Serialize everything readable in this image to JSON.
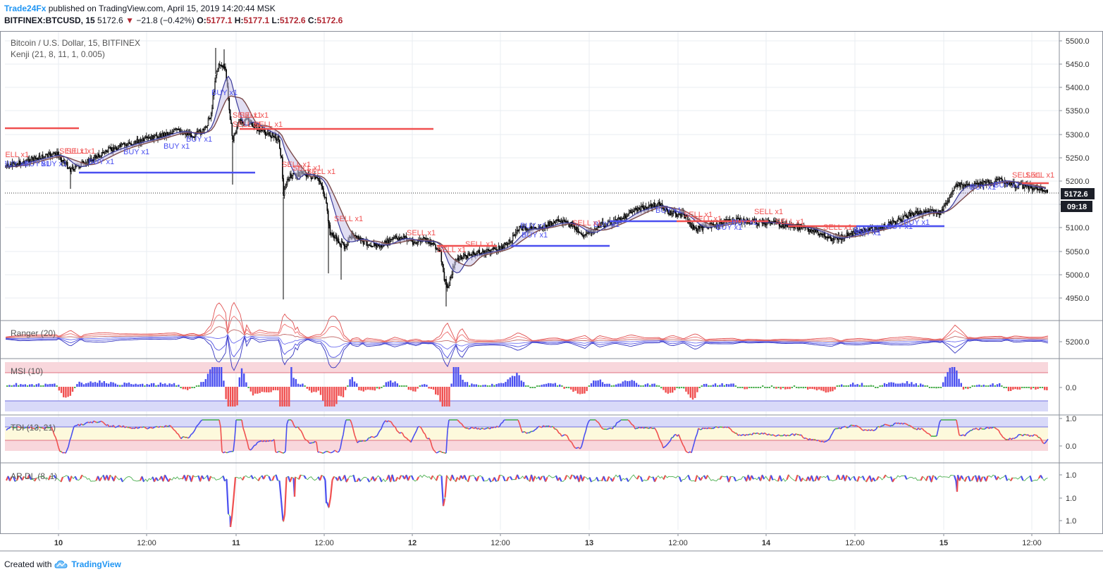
{
  "publish": {
    "author": "Trade24Fx",
    "text": "published on TradingView.com, April 15, 2019 14:20:44 MSK"
  },
  "ohlc": {
    "symbol": "BITFINEX:BTCUSD, 15",
    "last": "5172.6",
    "change": "−21.8 (−0.42%)",
    "o_label": "O:",
    "o": "5177.1",
    "h_label": "H:",
    "h": "5177.1",
    "l_label": "L:",
    "l": "5172.6",
    "c_label": "C:",
    "c": "5172.6"
  },
  "chart_title": "Bitcoin / U.S. Dollar, 15, BITFINEX",
  "indicator": "Kenji (21, 8, 11, 1, 0.005)",
  "colors": {
    "buy": "#4a4ff0",
    "sell": "#f05050",
    "up": "#4caf50",
    "candle": "#000000",
    "grid": "#e8ecf2"
  },
  "price_axis": {
    "ticks": [
      "5500.0",
      "5450.0",
      "5400.0",
      "5350.0",
      "5300.0",
      "5250.0",
      "5200.0",
      "5150.0",
      "5100.0",
      "5050.0",
      "5000.0",
      "4950.0"
    ],
    "current_price": "5172.6",
    "countdown": "09:18"
  },
  "time_axis": {
    "ticks": [
      "10",
      "12:00",
      "11",
      "12:00",
      "12",
      "12:00",
      "13",
      "12:00",
      "14",
      "12:00",
      "15",
      "12:00"
    ]
  },
  "trade_labels": {
    "buy": "BUY x1",
    "sell": "SELL x1",
    "buy_positions": [
      [
        3,
        236
      ],
      [
        34,
        236
      ],
      [
        58,
        236
      ],
      [
        125,
        233
      ],
      [
        175,
        219
      ],
      [
        232,
        211
      ],
      [
        264,
        201
      ],
      [
        300,
        135
      ],
      [
        738,
        324
      ],
      [
        740,
        337
      ],
      [
        842,
        322
      ],
      [
        930,
        302
      ],
      [
        1016,
        326
      ],
      [
        1038,
        319
      ],
      [
        1211,
        330
      ],
      [
        1213,
        334
      ],
      [
        1258,
        325
      ],
      [
        1282,
        319
      ],
      [
        1376,
        269
      ],
      [
        1410,
        266
      ]
    ],
    "sell_positions": [
      [
        0,
        223
      ],
      [
        84,
        218
      ],
      [
        94,
        218
      ],
      [
        330,
        167
      ],
      [
        340,
        167
      ],
      [
        330,
        180
      ],
      [
        360,
        180
      ],
      [
        400,
        237
      ],
      [
        415,
        242
      ],
      [
        435,
        247
      ],
      [
        474,
        314
      ],
      [
        577,
        334
      ],
      [
        620,
        358
      ],
      [
        660,
        350
      ],
      [
        812,
        320
      ],
      [
        970,
        308
      ],
      [
        983,
        314
      ],
      [
        1070,
        304
      ],
      [
        1100,
        318
      ],
      [
        1168,
        326
      ],
      [
        1436,
        252
      ],
      [
        1455,
        252
      ]
    ]
  },
  "panes": {
    "ranger": {
      "label": "Ranger (20)",
      "axis": [
        "5200.0"
      ]
    },
    "msi": {
      "label": "MSI (10)",
      "axis": [
        "0.0"
      ]
    },
    "tdi": {
      "label": "TDI (13, 21)",
      "axis": [
        "1.0",
        "0.0"
      ]
    },
    "ardl": {
      "label": "AR DL (8, 1)",
      "axis": [
        "1.0",
        "1.0",
        "1.0"
      ]
    }
  },
  "footer": {
    "created_with": "Created with",
    "brand": "TradingView"
  }
}
